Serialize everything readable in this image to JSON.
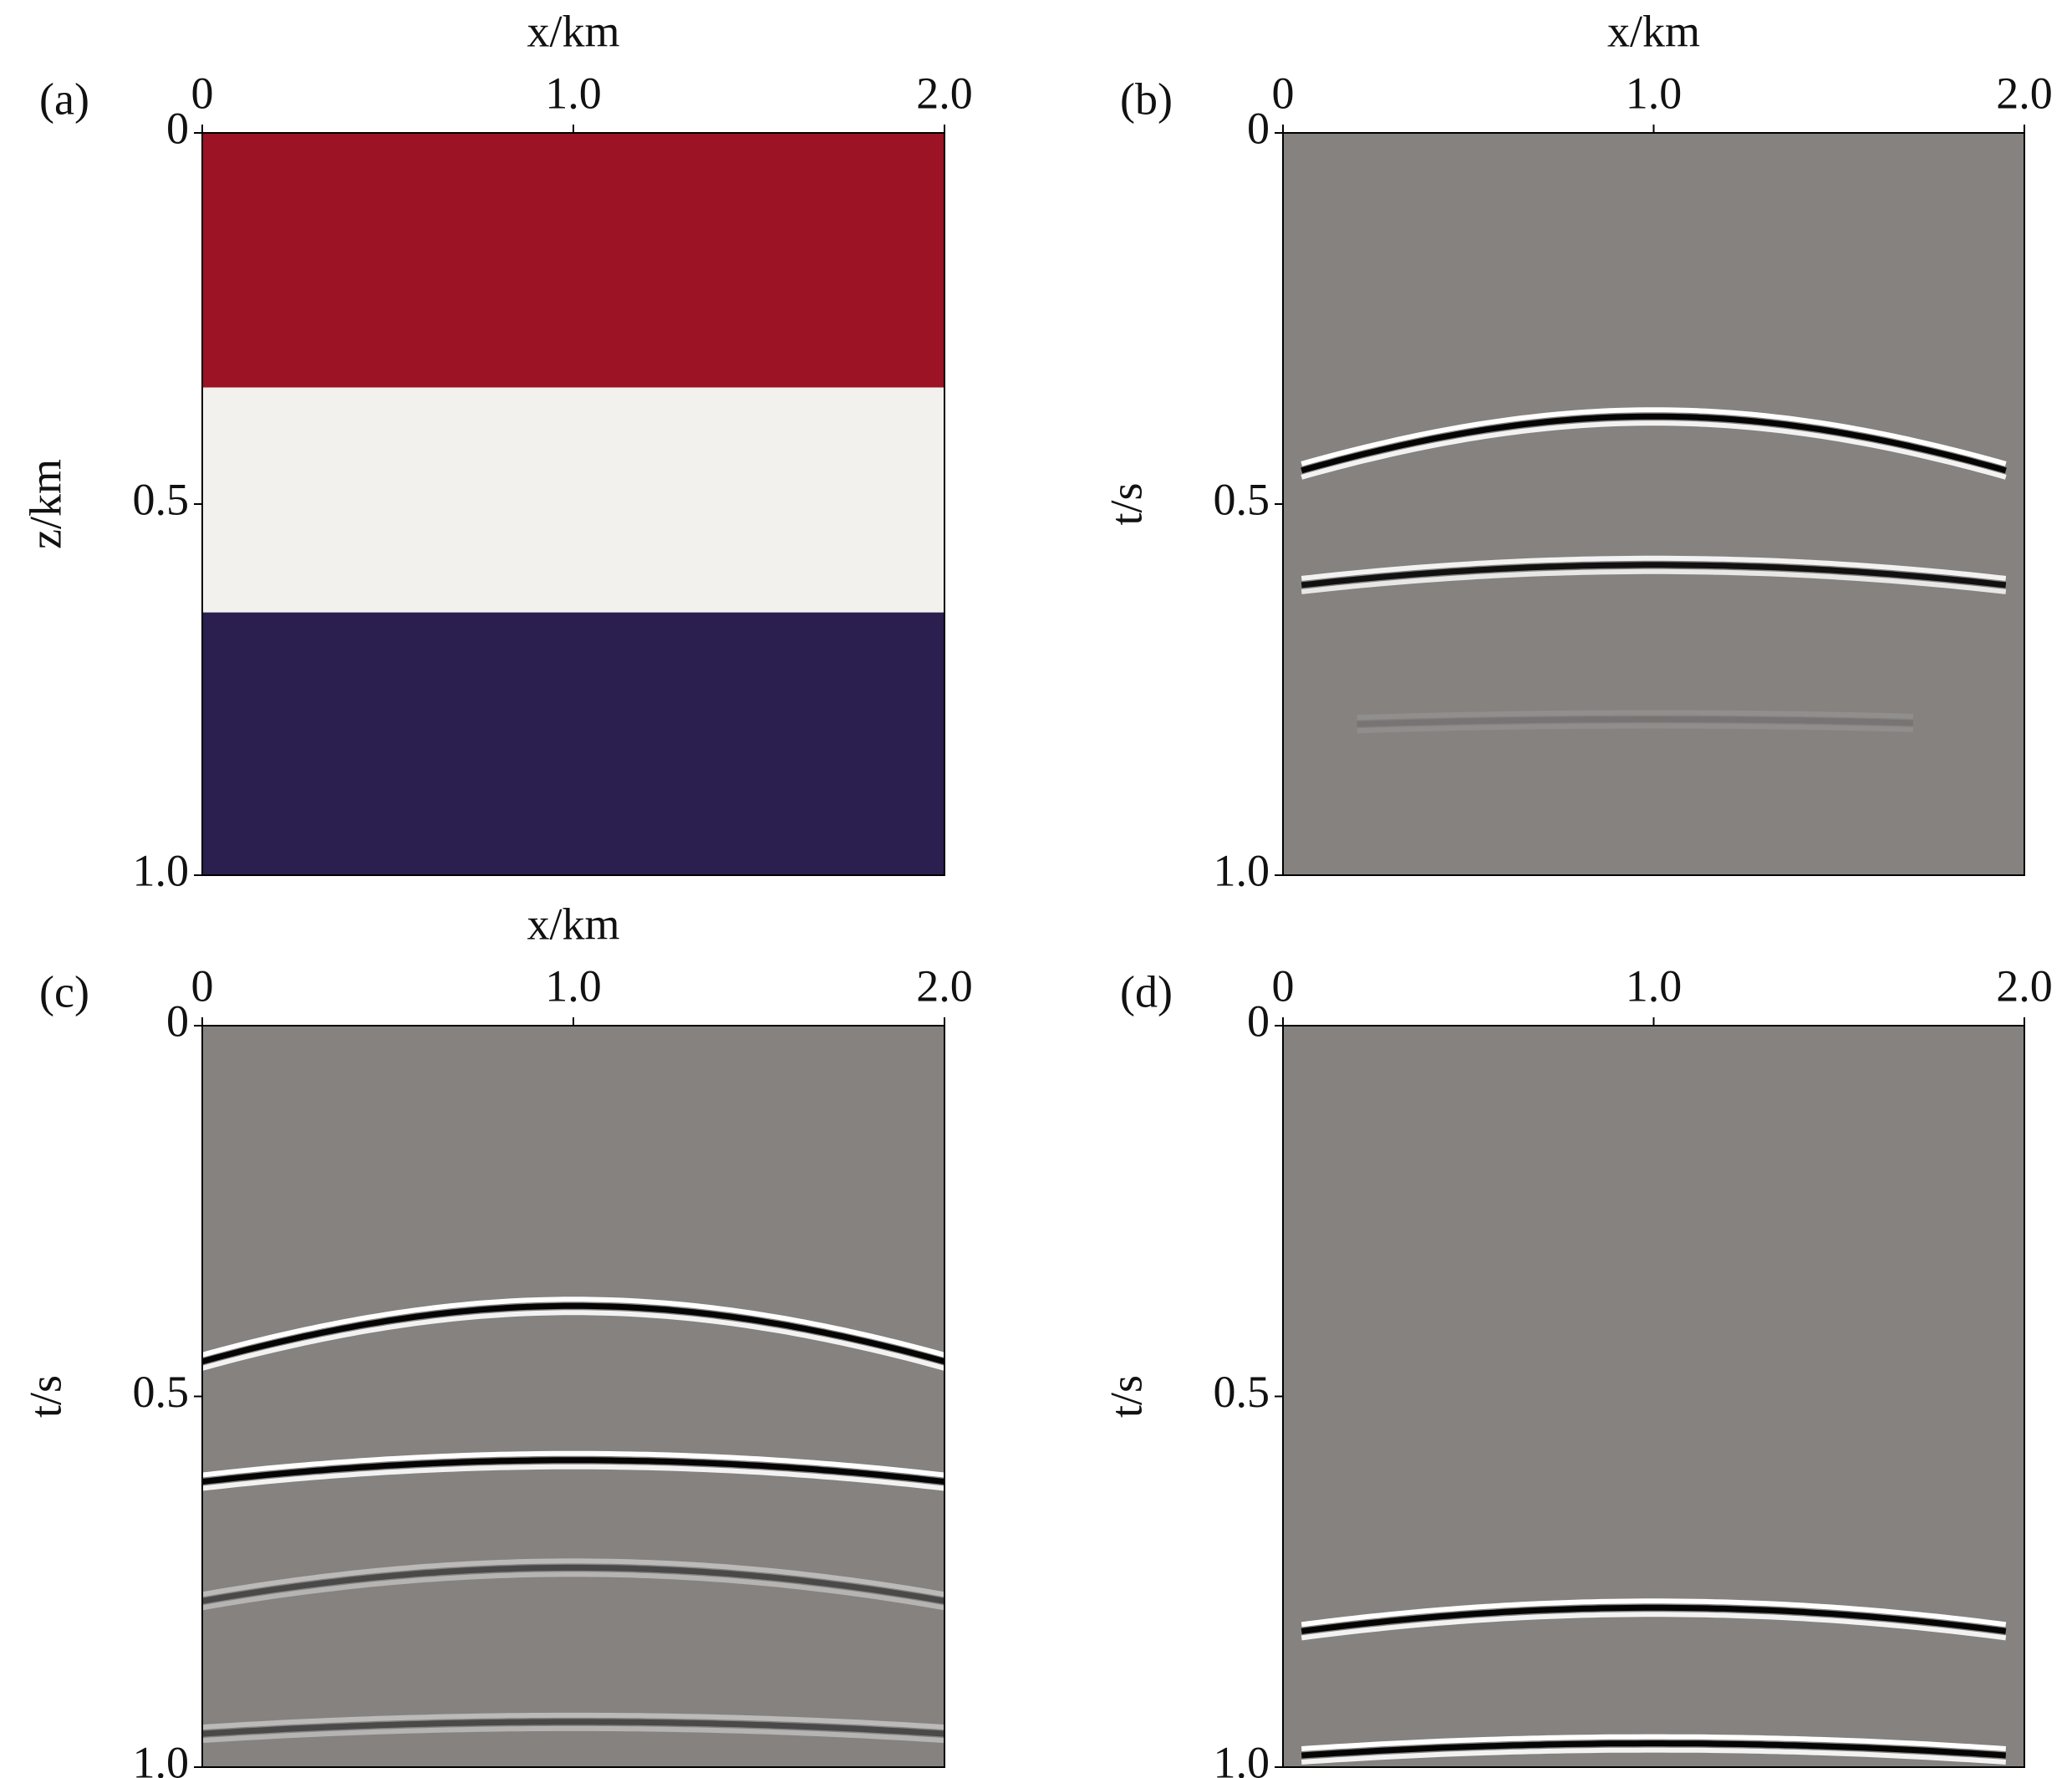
{
  "chart_data": [
    {
      "type": "layers",
      "label": "(a)",
      "xlabel": "x/km",
      "ylabel": "z/km",
      "xlim": [
        0,
        2
      ],
      "ylim": [
        0,
        1
      ],
      "y_inverted": true,
      "xticks": [
        0,
        {
          "value": 1,
          "label": "1.0"
        },
        {
          "value": 2,
          "label": "2.0"
        }
      ],
      "yticks": [
        0,
        0.5,
        {
          "value": 1,
          "label": "1.0"
        }
      ],
      "layers": [
        {
          "top": 0,
          "bottom": 0.343,
          "color": "#9b1324"
        },
        {
          "top": 0.343,
          "bottom": 0.646,
          "color": "#f3f1ee"
        },
        {
          "top": 0.646,
          "bottom": 1,
          "color": "#2a1f4f"
        }
      ]
    },
    {
      "type": "seismic",
      "label": "(b)",
      "xlabel": "x/km",
      "ylabel": "t/s",
      "xlim": [
        0,
        2
      ],
      "ylim": [
        0,
        1
      ],
      "y_inverted": true,
      "background": "#858280",
      "xticks": [
        0,
        {
          "value": 1,
          "label": "1.0"
        },
        {
          "value": 2,
          "label": "2.0"
        }
      ],
      "yticks": [
        0,
        0.5,
        {
          "value": 1,
          "label": "1.0"
        }
      ],
      "events": [
        {
          "t0": 0.382,
          "t_edge": 0.462,
          "x_start": 0.05,
          "x_end": 1.95,
          "strength": 1
        },
        {
          "t0": 0.582,
          "t_edge": 0.612,
          "x_start": 0.05,
          "x_end": 1.95,
          "strength": 0.9
        },
        {
          "t0": 0.79,
          "t_edge": 0.8,
          "x_start": 0.2,
          "x_end": 1.7,
          "strength": 0.1
        }
      ]
    },
    {
      "type": "seismic",
      "label": "(c)",
      "xlabel": "x/km",
      "ylabel": "t/s",
      "xlim": [
        0,
        2
      ],
      "ylim": [
        0,
        1
      ],
      "y_inverted": true,
      "background": "#858280",
      "xticks": [
        0,
        {
          "value": 1,
          "label": "1.0"
        },
        {
          "value": 2,
          "label": "2.0"
        }
      ],
      "yticks": [
        0,
        0.5,
        {
          "value": 1,
          "label": "1.0"
        }
      ],
      "events": [
        {
          "t0": 0.378,
          "t_edge": 0.453,
          "x_start": 0,
          "x_end": 2,
          "strength": 1
        },
        {
          "t0": 0.586,
          "t_edge": 0.615,
          "x_start": 0,
          "x_end": 2,
          "strength": 1
        },
        {
          "t0": 0.731,
          "t_edge": 0.776,
          "x_start": 0,
          "x_end": 2,
          "strength": 0.45
        },
        {
          "t0": 0.939,
          "t_edge": 0.955,
          "x_start": 0,
          "x_end": 2,
          "strength": 0.45
        }
      ]
    },
    {
      "type": "seismic",
      "label": "(d)",
      "ylabel": "t/s",
      "xlim": [
        0,
        2
      ],
      "ylim": [
        0,
        1
      ],
      "y_inverted": true,
      "background": "#858280",
      "xticks": [
        0,
        {
          "value": 1,
          "label": "1.0"
        },
        {
          "value": 2,
          "label": "2.0"
        }
      ],
      "yticks": [
        0,
        0.5,
        {
          "value": 1,
          "label": "1.0"
        }
      ],
      "events": [
        {
          "t0": 0.785,
          "t_edge": 0.82,
          "x_start": 0.05,
          "x_end": 1.95,
          "strength": 1
        },
        {
          "t0": 0.968,
          "t_edge": 0.986,
          "x_start": 0.05,
          "x_end": 1.95,
          "strength": 1
        }
      ]
    }
  ]
}
